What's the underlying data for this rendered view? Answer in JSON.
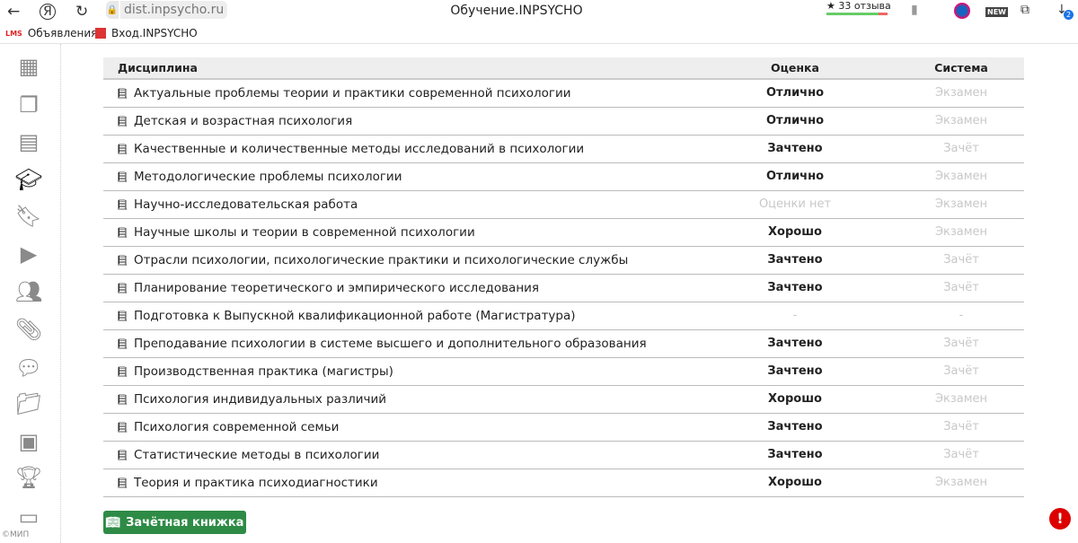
{
  "browser": {
    "url": "dist.inpsycho.ru",
    "title": "Обучение.INPSYCHO",
    "reviews": "33 отзыва",
    "downloads_badge": "2",
    "bookmarks": [
      {
        "icon": "LMS",
        "label": "Объявления"
      },
      {
        "label": "Вход.INPSYCHO"
      }
    ]
  },
  "table": {
    "headers": {
      "discipline": "Дисциплина",
      "grade": "Оценка",
      "system": "Система"
    },
    "rows": [
      {
        "discipline": "Актуальные проблемы теории и практики современной психологии",
        "grade": "Отлично",
        "system": "Экзамен"
      },
      {
        "discipline": "Детская и возрастная психология",
        "grade": "Отлично",
        "system": "Экзамен"
      },
      {
        "discipline": "Качественные и количественные методы исследований в психологии",
        "grade": "Зачтено",
        "system": "Зачёт"
      },
      {
        "discipline": "Методологические проблемы психологии",
        "grade": "Отлично",
        "system": "Экзамен"
      },
      {
        "discipline": "Научно-исследовательская работа",
        "grade": "Оценки нет",
        "system": "Экзамен"
      },
      {
        "discipline": "Научные школы и теории в современной психологии",
        "grade": "Хорошо",
        "system": "Экзамен"
      },
      {
        "discipline": "Отрасли психологии, психологические практики и психологические службы",
        "grade": "Зачтено",
        "system": "Зачёт"
      },
      {
        "discipline": "Планирование теоретического и эмпирического исследования",
        "grade": "Зачтено",
        "system": "Зачёт"
      },
      {
        "discipline": "Подготовка к Выпускной квалификационной работе (Магистратура)",
        "grade": "-",
        "system": "-"
      },
      {
        "discipline": "Преподавание психологии в системе высшего и дополнительного образования",
        "grade": "Зачтено",
        "system": "Зачёт"
      },
      {
        "discipline": "Производственная практика (магистры)",
        "grade": "Зачтено",
        "system": "Зачёт"
      },
      {
        "discipline": "Психология индивидуальных различий",
        "grade": "Хорошо",
        "system": "Экзамен"
      },
      {
        "discipline": "Психология современной семьи",
        "grade": "Зачтено",
        "system": "Зачёт"
      },
      {
        "discipline": "Статистические методы в психологии",
        "grade": "Зачтено",
        "system": "Зачёт"
      },
      {
        "discipline": "Теория и практика психодиагностики",
        "grade": "Хорошо",
        "system": "Экзамен"
      }
    ]
  },
  "record_book_button": "Зачётная книжка",
  "footer": {
    "copyright": "©МИП"
  },
  "colors": {
    "button": "#2e8b46",
    "muted": "#c8c8c8",
    "alert": "#dd0000"
  }
}
